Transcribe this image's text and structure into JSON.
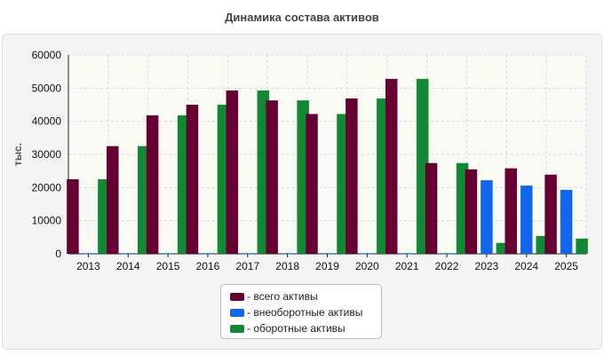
{
  "title": "Динамика состава активов",
  "chart_data": {
    "type": "bar",
    "title": "Динамика состава активов",
    "xlabel": "",
    "ylabel": "тыс.",
    "ylim": [
      0,
      60000
    ],
    "yticks": [
      0,
      10000,
      20000,
      30000,
      40000,
      50000,
      60000
    ],
    "grid": true,
    "legend_position": "bottom",
    "categories": [
      "2013",
      "2014",
      "2015",
      "2016",
      "2017",
      "2018",
      "2019",
      "2020",
      "2021",
      "2022",
      "2023",
      "2024",
      "2025"
    ],
    "series": [
      {
        "name": "- всего активы",
        "color": "#660033",
        "values": [
          22500,
          32500,
          41800,
          45000,
          49300,
          46300,
          42200,
          46900,
          52800,
          27400,
          25500,
          25800,
          23900
        ]
      },
      {
        "name": "- внеоборотные активы",
        "color": "#1166ee",
        "values": [
          200,
          200,
          200,
          200,
          200,
          200,
          200,
          200,
          200,
          200,
          22200,
          20600,
          19300
        ]
      },
      {
        "name": "- оборотные активы",
        "color": "#118833",
        "values": [
          22500,
          32500,
          41800,
          45000,
          49300,
          46300,
          42200,
          46900,
          52800,
          27400,
          3300,
          5400,
          4600
        ]
      }
    ]
  }
}
